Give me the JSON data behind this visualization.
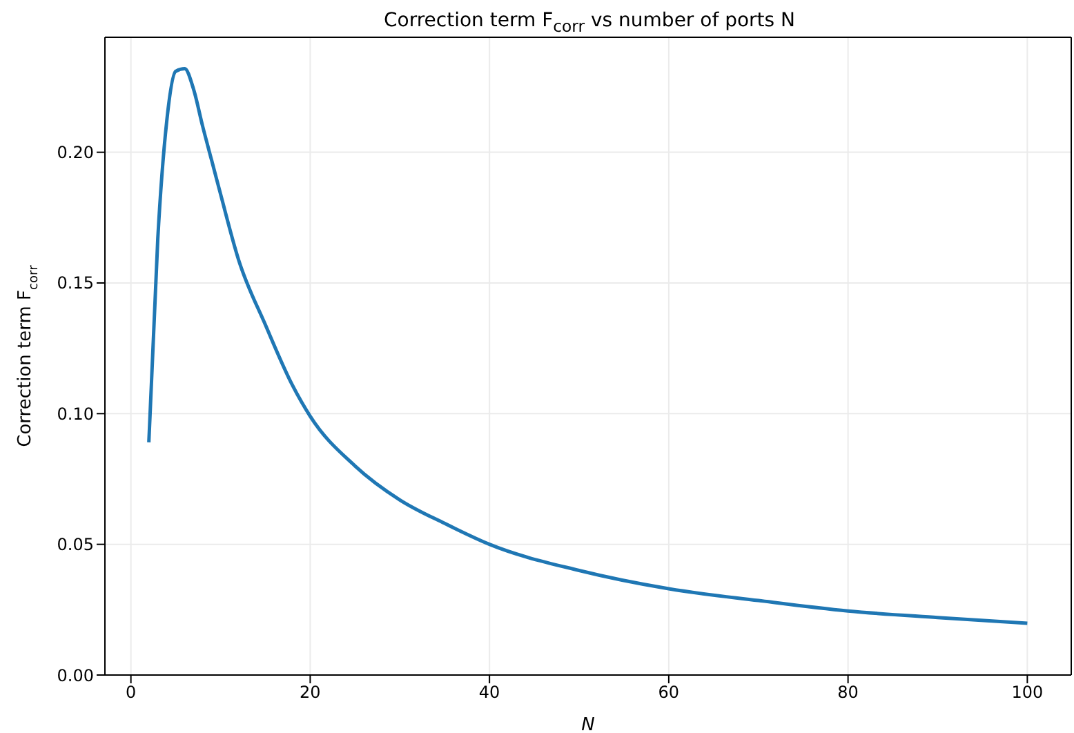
{
  "chart_data": {
    "type": "line",
    "title": "Correction term F$_{corr}$ vs number of ports N",
    "xlabel": "N",
    "ylabel": "Correction term F$_{corr}$",
    "x": [
      2,
      3,
      4,
      5,
      6,
      7,
      8,
      9,
      10,
      12,
      15,
      18,
      20,
      25,
      30,
      35,
      40,
      50,
      60,
      70,
      80,
      90,
      100
    ],
    "series": [
      {
        "color": "#1f77b4",
        "values": [
          0.089,
          0.167,
          0.212,
          0.231,
          0.232,
          0.224,
          0.21,
          0.197,
          0.184,
          0.159,
          0.134,
          0.111,
          0.099,
          0.08,
          0.067,
          0.058,
          0.05,
          0.04,
          0.033,
          0.0285,
          0.0245,
          0.022,
          0.0198
        ]
      }
    ],
    "xlim": [
      -2.9,
      104.9
    ],
    "ylim": [
      0,
      0.244
    ],
    "xticks": [
      0,
      20,
      40,
      60,
      80,
      100
    ],
    "yticks": [
      {
        "value": 0,
        "label": "0.00"
      },
      {
        "value": 0.05,
        "label": "0.05"
      },
      {
        "value": 0.1,
        "label": "0.10"
      },
      {
        "value": 0.15,
        "label": "0.15"
      },
      {
        "value": 0.2,
        "label": "0.20"
      }
    ],
    "grid": true,
    "marker": "none",
    "line_style": "solid",
    "legend": false
  }
}
